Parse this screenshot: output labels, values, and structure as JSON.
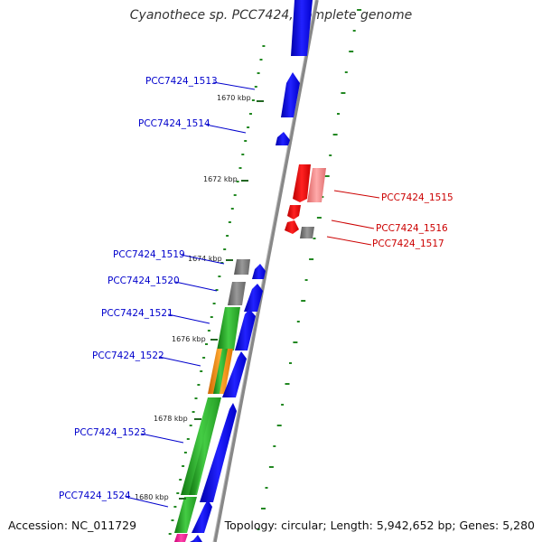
{
  "title": "Cyanothece sp. PCC7424, complete genome",
  "accession": "Accession: NC_011729",
  "summary": "Topology: circular; Length: 5,942,652 bp; Genes: 5,280",
  "colors": {
    "backbone": "#8a8a8a",
    "forward_gene": "#0000ee",
    "highlight_gene": "#ee0000",
    "pseudo_gene": "#ee8888",
    "grey_feature": "#777777",
    "green_feature": "#22aa22",
    "orange_feature": "#ff8800",
    "pink_feature": "#ff2299",
    "gc_dots": "#228822",
    "label_blue": "#0000cc",
    "label_red": "#cc0000"
  },
  "scale_ticks": [
    {
      "label": "1670 kbp",
      "position_kbp": 1670
    },
    {
      "label": "1672 kbp",
      "position_kbp": 1672
    },
    {
      "label": "1674 kbp",
      "position_kbp": 1674
    },
    {
      "label": "1676 kbp",
      "position_kbp": 1676
    },
    {
      "label": "1678 kbp",
      "position_kbp": 1678
    },
    {
      "label": "1680 kbp",
      "position_kbp": 1680
    }
  ],
  "genes": [
    {
      "id": "PCC7424_1513",
      "label": "PCC7424_1513",
      "color": "label_blue"
    },
    {
      "id": "PCC7424_1514",
      "label": "PCC7424_1514",
      "color": "label_blue"
    },
    {
      "id": "PCC7424_1515",
      "label": "PCC7424_1515",
      "color": "label_red"
    },
    {
      "id": "PCC7424_1516",
      "label": "PCC7424_1516",
      "color": "label_red"
    },
    {
      "id": "PCC7424_1517",
      "label": "PCC7424_1517",
      "color": "label_red"
    },
    {
      "id": "PCC7424_1519",
      "label": "PCC7424_1519",
      "color": "label_blue"
    },
    {
      "id": "PCC7424_1520",
      "label": "PCC7424_1520",
      "color": "label_blue"
    },
    {
      "id": "PCC7424_1521",
      "label": "PCC7424_1521",
      "color": "label_blue"
    },
    {
      "id": "PCC7424_1522",
      "label": "PCC7424_1522",
      "color": "label_blue"
    },
    {
      "id": "PCC7424_1523",
      "label": "PCC7424_1523",
      "color": "label_blue"
    },
    {
      "id": "PCC7424_1524",
      "label": "PCC7424_1524",
      "color": "label_blue"
    }
  ]
}
